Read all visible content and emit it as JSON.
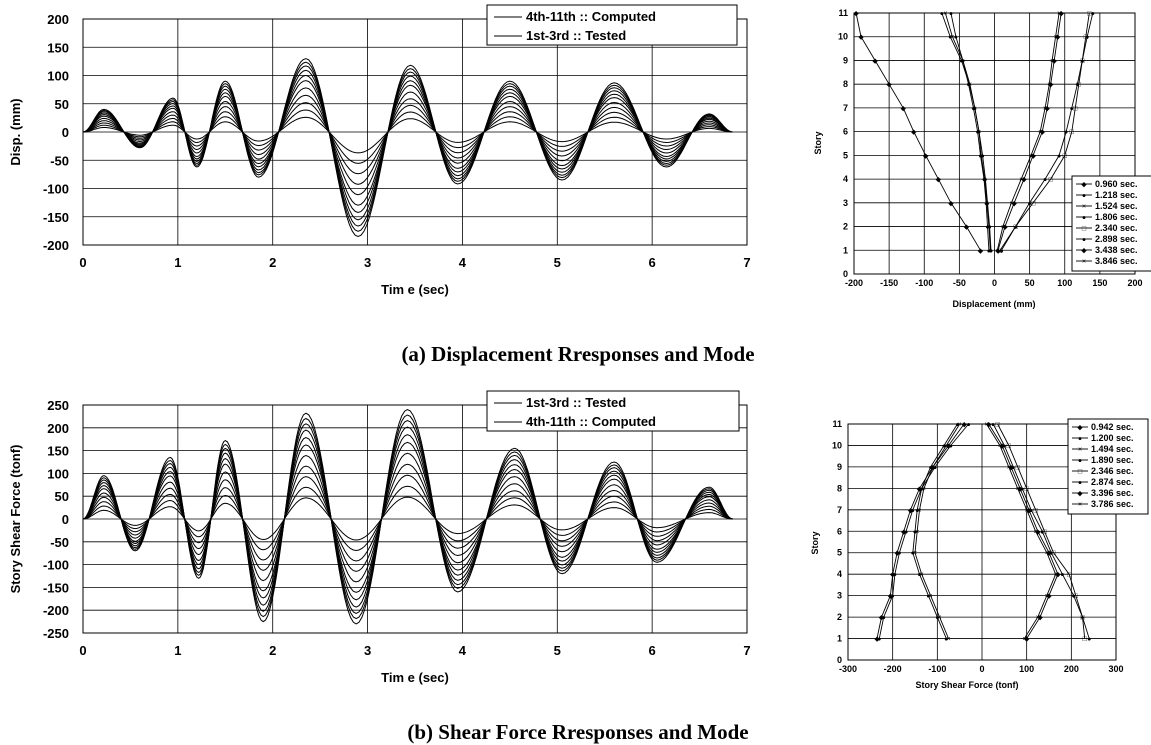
{
  "chart_data": [
    {
      "type": "line",
      "id": "disp_time",
      "xlabel": "Tim e (sec)",
      "ylabel": "Disp. (mm)",
      "xlim": [
        0,
        7
      ],
      "ylim": [
        -200,
        200
      ],
      "x_ticks": [
        "0",
        "1",
        "2",
        "3",
        "4",
        "5",
        "6",
        "7"
      ],
      "y_ticks": [
        "200",
        "150",
        "100",
        "50",
        "0",
        "-50",
        "-100",
        "-150",
        "-200"
      ],
      "grid": true,
      "legend_position": "top-right",
      "legend": [
        "4th-11th :: Computed",
        "1st-3rd :: Tested"
      ],
      "t_end": 6.85,
      "peaks": [
        [
          0.22,
          40
        ],
        [
          0.6,
          -28
        ],
        [
          0.95,
          60
        ],
        [
          1.2,
          -62
        ],
        [
          1.5,
          90
        ],
        [
          1.85,
          -80
        ],
        [
          2.35,
          130
        ],
        [
          2.9,
          -185
        ],
        [
          3.45,
          118
        ],
        [
          3.95,
          -92
        ],
        [
          4.5,
          90
        ],
        [
          5.05,
          -85
        ],
        [
          5.6,
          87
        ],
        [
          6.15,
          -62
        ],
        [
          6.6,
          32
        ]
      ],
      "story_fractions": [
        0.2,
        0.3,
        0.4,
        0.5,
        0.6,
        0.7,
        0.77,
        0.84,
        0.9,
        0.95,
        1.0
      ]
    },
    {
      "type": "line",
      "id": "shear_time",
      "xlabel": "Tim e (sec)",
      "ylabel": "Story Shear Force (tonf)",
      "xlim": [
        0,
        7
      ],
      "ylim": [
        -250,
        250
      ],
      "x_ticks": [
        "0",
        "1",
        "2",
        "3",
        "4",
        "5",
        "6",
        "7"
      ],
      "y_ticks": [
        "250",
        "200",
        "150",
        "100",
        "50",
        "0",
        "-50",
        "-100",
        "-150",
        "-200",
        "-250"
      ],
      "grid": true,
      "legend_position": "top-right",
      "legend": [
        "1st-3rd :: Tested",
        "4th-11th :: Computed"
      ],
      "t_end": 6.85,
      "peaks": [
        [
          0.22,
          95
        ],
        [
          0.55,
          -70
        ],
        [
          0.92,
          135
        ],
        [
          1.22,
          -130
        ],
        [
          1.5,
          172
        ],
        [
          1.9,
          -225
        ],
        [
          2.35,
          232
        ],
        [
          2.88,
          -230
        ],
        [
          3.42,
          240
        ],
        [
          3.95,
          -160
        ],
        [
          4.55,
          155
        ],
        [
          5.05,
          -120
        ],
        [
          5.6,
          125
        ],
        [
          6.05,
          -95
        ],
        [
          6.6,
          70
        ]
      ],
      "story_fractions": [
        1.0,
        0.95,
        0.9,
        0.84,
        0.77,
        0.7,
        0.6,
        0.5,
        0.4,
        0.3,
        0.2
      ]
    },
    {
      "type": "line",
      "id": "disp_mode",
      "xlabel": "Displacement (mm)",
      "ylabel": "Story",
      "xlim": [
        -200,
        200
      ],
      "ylim": [
        0,
        11
      ],
      "x_ticks": [
        "-200",
        "-150",
        "-100",
        "-50",
        "0",
        "50",
        "100",
        "150",
        "200"
      ],
      "y_ticks": [
        "0",
        "1",
        "2",
        "3",
        "4",
        "5",
        "6",
        "7",
        "8",
        "9",
        "10",
        "11"
      ],
      "grid": true,
      "legend_position": "bottom-right",
      "markers": [
        "◆",
        "●",
        "×",
        "●",
        "□",
        "●",
        "◆",
        "×"
      ],
      "series": [
        {
          "name": "0.960 sec.",
          "x": [
            -20,
            -40,
            -62,
            -80,
            -98,
            -115,
            -130,
            -150,
            -170,
            -190,
            -197
          ]
        },
        {
          "name": "1.218 sec.",
          "x": [
            -8,
            -10,
            -12,
            -15,
            -20,
            -24,
            -30,
            -37,
            -45,
            -55,
            -62
          ]
        },
        {
          "name": "1.524 sec.",
          "x": [
            -6,
            -8,
            -11,
            -14,
            -19,
            -22,
            -28,
            -35,
            -45,
            -60,
            -70
          ]
        },
        {
          "name": "1.806 sec.",
          "x": [
            -5,
            -7,
            -10,
            -13,
            -17,
            -22,
            -28,
            -36,
            -47,
            -63,
            -75
          ]
        },
        {
          "name": "2.340 sec.",
          "x": [
            8,
            30,
            55,
            80,
            100,
            110,
            115,
            120,
            125,
            130,
            135
          ]
        },
        {
          "name": "2.898 sec.",
          "x": [
            10,
            30,
            50,
            72,
            92,
            102,
            110,
            118,
            125,
            132,
            140
          ]
        },
        {
          "name": "3.438 sec.",
          "x": [
            5,
            15,
            28,
            42,
            55,
            68,
            75,
            80,
            85,
            90,
            95
          ]
        },
        {
          "name": "3.846 sec.",
          "x": [
            4,
            12,
            24,
            38,
            52,
            65,
            72,
            78,
            82,
            87,
            92
          ]
        }
      ],
      "story": [
        1,
        2,
        3,
        4,
        5,
        6,
        7,
        8,
        9,
        10,
        11
      ]
    },
    {
      "type": "line",
      "id": "shear_mode",
      "xlabel": "Story Shear Force (tonf)",
      "ylabel": "Story",
      "xlim": [
        -300,
        300
      ],
      "ylim": [
        0,
        11
      ],
      "x_ticks": [
        "-300",
        "-200",
        "-100",
        "0",
        "100",
        "200",
        "300"
      ],
      "y_ticks": [
        "0",
        "1",
        "2",
        "3",
        "4",
        "5",
        "6",
        "7",
        "8",
        "9",
        "10",
        "11"
      ],
      "grid": true,
      "legend_position": "top-right",
      "markers": [
        "◆",
        "●",
        "×",
        "●",
        "□",
        "●",
        "◆",
        "×"
      ],
      "series": [
        {
          "name": "0.942 sec.",
          "x": [
            -235,
            -225,
            -205,
            -200,
            -190,
            -175,
            -160,
            -140,
            -110,
            -75,
            -40
          ]
        },
        {
          "name": "1.200 sec.",
          "x": [
            -230,
            -220,
            -200,
            -195,
            -185,
            -170,
            -155,
            -135,
            -105,
            -70,
            -30
          ]
        },
        {
          "name": "1.494 sec.",
          "x": [
            -75,
            -95,
            -115,
            -135,
            -150,
            -145,
            -140,
            -130,
            -110,
            -80,
            -50
          ]
        },
        {
          "name": "1.890 sec.",
          "x": [
            -80,
            -100,
            -120,
            -140,
            -155,
            -150,
            -145,
            -135,
            -115,
            -85,
            -55
          ]
        },
        {
          "name": "2.346 sec.",
          "x": [
            230,
            225,
            210,
            195,
            160,
            140,
            120,
            100,
            80,
            60,
            35
          ]
        },
        {
          "name": "2.874 sec.",
          "x": [
            240,
            225,
            205,
            180,
            155,
            135,
            110,
            90,
            70,
            50,
            25
          ]
        },
        {
          "name": "3.396 sec.",
          "x": [
            100,
            130,
            150,
            170,
            150,
            125,
            105,
            85,
            65,
            45,
            15
          ]
        },
        {
          "name": "3.786 sec.",
          "x": [
            95,
            125,
            145,
            165,
            145,
            120,
            100,
            80,
            60,
            40,
            10
          ]
        }
      ],
      "story": [
        1,
        2,
        3,
        4,
        5,
        6,
        7,
        8,
        9,
        10,
        11
      ]
    }
  ],
  "captions": {
    "a": "(a) Displacement Rresponses and Mode",
    "b": "(b) Shear Force Rresponses and Mode"
  },
  "colors": {
    "line": "#000000",
    "grid": "#000000",
    "background": "#ffffff"
  }
}
